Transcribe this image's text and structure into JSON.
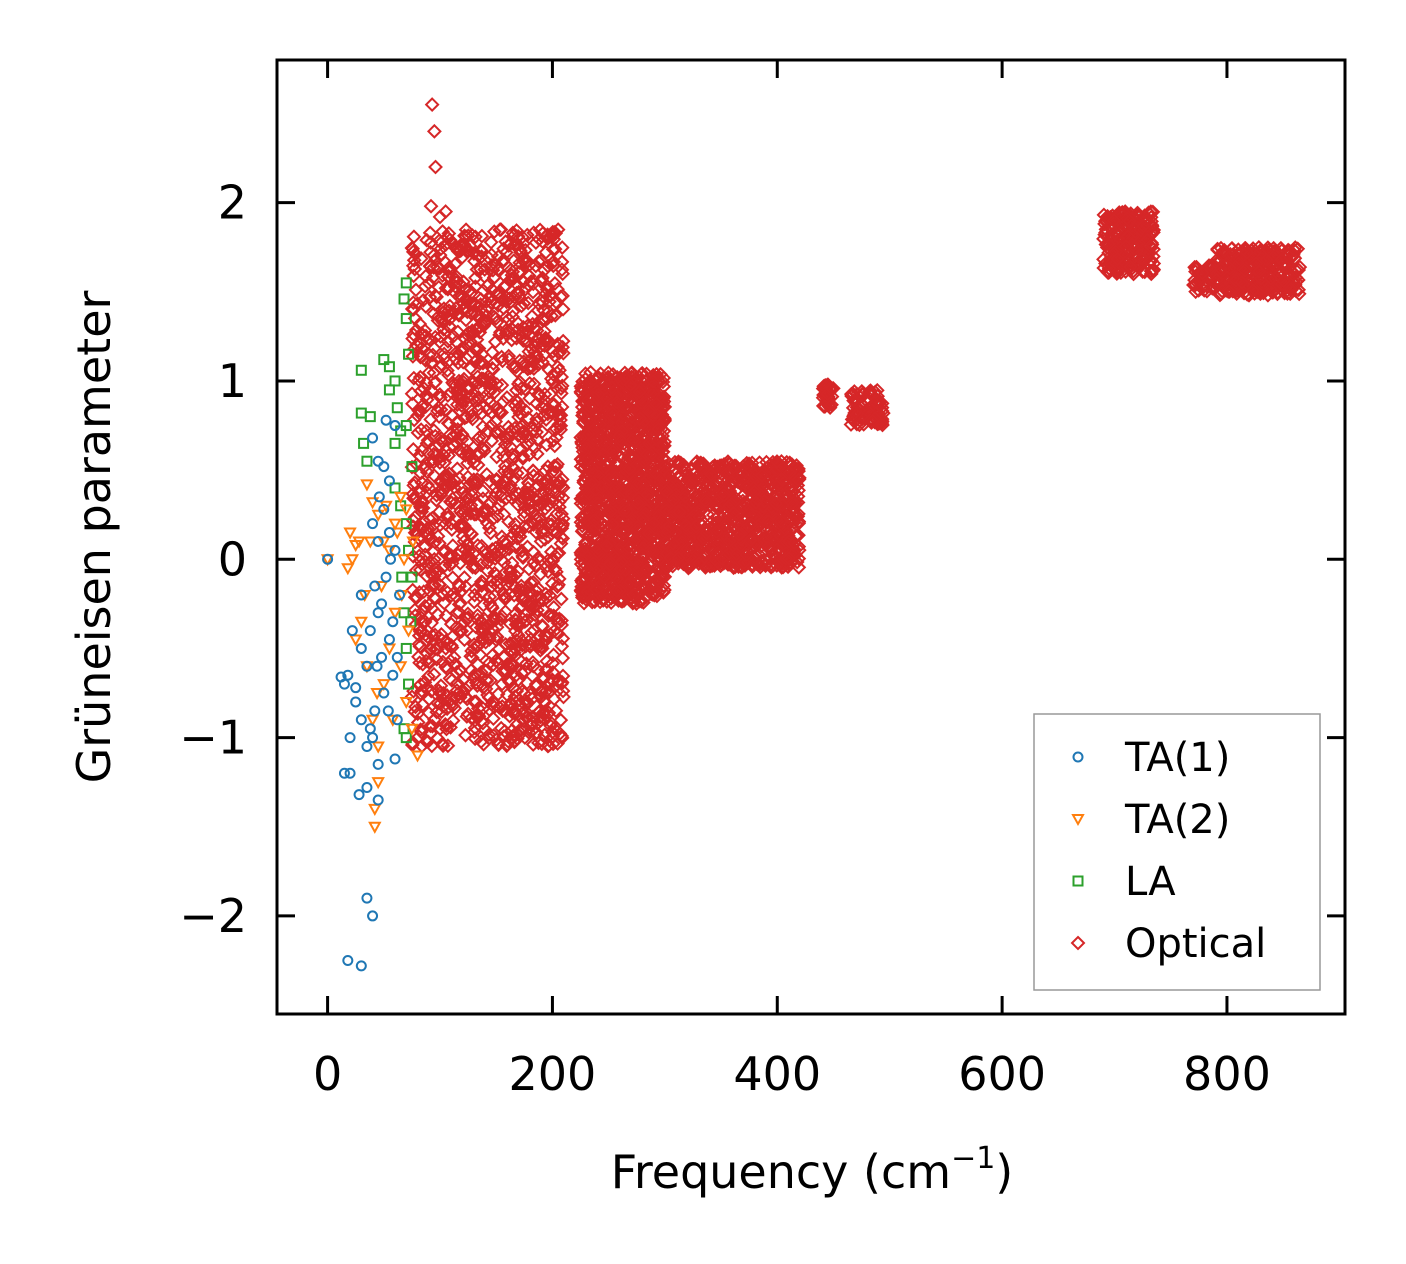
{
  "chart_data": {
    "type": "scatter",
    "title": "",
    "xlabel": "Frequency (cm",
    "xlabel_sup": "−1",
    "xlabel_suffix": ")",
    "ylabel": "Grüneisen parameter",
    "xlim": [
      -45,
      905
    ],
    "ylim": [
      -2.55,
      2.8
    ],
    "xticks": [
      0,
      200,
      400,
      600,
      800
    ],
    "xtick_labels": [
      "0",
      "200",
      "400",
      "600",
      "800"
    ],
    "yticks": [
      -2,
      -1,
      0,
      1,
      2
    ],
    "ytick_labels": [
      "−2",
      "−1",
      "0",
      "1",
      "2"
    ],
    "grid": false,
    "legend_position": "lower-right",
    "series": [
      {
        "name": "TA(1)",
        "marker": "circle",
        "color": "#1f77b4",
        "points": [
          [
            0,
            0
          ],
          [
            18,
            -2.25
          ],
          [
            30,
            -2.28
          ],
          [
            35,
            -1.9
          ],
          [
            40,
            -2.0
          ],
          [
            15,
            -1.2
          ],
          [
            20,
            -1.2
          ],
          [
            28,
            -1.32
          ],
          [
            35,
            -1.28
          ],
          [
            45,
            -1.35
          ],
          [
            18,
            -0.65
          ],
          [
            22,
            -0.4
          ],
          [
            25,
            -0.72
          ],
          [
            30,
            -0.5
          ],
          [
            30,
            -0.2
          ],
          [
            35,
            -0.6
          ],
          [
            38,
            -0.95
          ],
          [
            40,
            -1.0
          ],
          [
            42,
            -0.85
          ],
          [
            45,
            -0.3
          ],
          [
            48,
            -0.55
          ],
          [
            50,
            -0.75
          ],
          [
            52,
            -0.1
          ],
          [
            55,
            -0.45
          ],
          [
            58,
            -0.65
          ],
          [
            40,
            0.68
          ],
          [
            45,
            0.55
          ],
          [
            50,
            0.52
          ],
          [
            55,
            0.44
          ],
          [
            52,
            0.78
          ],
          [
            60,
            0.75
          ],
          [
            40,
            0.2
          ],
          [
            45,
            0.1
          ],
          [
            50,
            0.28
          ],
          [
            55,
            0.15
          ],
          [
            60,
            0.05
          ],
          [
            42,
            -0.15
          ],
          [
            48,
            -0.25
          ],
          [
            58,
            -0.35
          ],
          [
            62,
            -0.55
          ],
          [
            62,
            -0.9
          ],
          [
            60,
            -1.12
          ],
          [
            45,
            -1.15
          ],
          [
            35,
            -1.05
          ],
          [
            30,
            -0.9
          ],
          [
            25,
            -0.8
          ],
          [
            15,
            -0.7
          ],
          [
            12,
            -0.66
          ],
          [
            20,
            -1.0
          ],
          [
            38,
            -0.4
          ],
          [
            46,
            0.35
          ],
          [
            54,
            -0.85
          ],
          [
            64,
            -0.2
          ],
          [
            44,
            -0.6
          ],
          [
            56,
            0.0
          ]
        ]
      },
      {
        "name": "TA(2)",
        "marker": "triangle-down",
        "color": "#ff7f0e",
        "points": [
          [
            0,
            0
          ],
          [
            20,
            0.15
          ],
          [
            22,
            0.0
          ],
          [
            18,
            -0.05
          ],
          [
            25,
            0.08
          ],
          [
            35,
            0.42
          ],
          [
            40,
            0.32
          ],
          [
            45,
            0.25
          ],
          [
            50,
            0.1
          ],
          [
            55,
            0.05
          ],
          [
            60,
            0.2
          ],
          [
            65,
            0.35
          ],
          [
            70,
            0.28
          ],
          [
            30,
            -0.35
          ],
          [
            25,
            -0.45
          ],
          [
            35,
            -0.6
          ],
          [
            40,
            -0.9
          ],
          [
            45,
            -1.05
          ],
          [
            45,
            -1.25
          ],
          [
            42,
            -1.4
          ],
          [
            42,
            -1.5
          ],
          [
            50,
            -0.7
          ],
          [
            55,
            -0.5
          ],
          [
            60,
            -0.3
          ],
          [
            65,
            -0.6
          ],
          [
            70,
            -0.8
          ],
          [
            75,
            -0.95
          ],
          [
            80,
            -1.1
          ],
          [
            38,
            0.1
          ],
          [
            48,
            -0.15
          ],
          [
            58,
            -0.9
          ],
          [
            68,
            0.0
          ],
          [
            72,
            -0.4
          ],
          [
            52,
            0.3
          ],
          [
            62,
            0.15
          ],
          [
            28,
            0.1
          ],
          [
            33,
            -0.2
          ],
          [
            44,
            -0.75
          ],
          [
            66,
            -0.2
          ],
          [
            76,
            0.1
          ]
        ]
      },
      {
        "name": "LA",
        "marker": "square",
        "color": "#2ca02c",
        "points": [
          [
            30,
            1.06
          ],
          [
            50,
            1.12
          ],
          [
            55,
            1.08
          ],
          [
            60,
            1.0
          ],
          [
            70,
            1.55
          ],
          [
            68,
            1.46
          ],
          [
            70,
            1.35
          ],
          [
            72,
            1.15
          ],
          [
            30,
            0.82
          ],
          [
            38,
            0.8
          ],
          [
            32,
            0.65
          ],
          [
            35,
            0.55
          ],
          [
            60,
            0.65
          ],
          [
            65,
            0.72
          ],
          [
            70,
            0.75
          ],
          [
            75,
            0.52
          ],
          [
            65,
            0.3
          ],
          [
            70,
            0.2
          ],
          [
            72,
            0.05
          ],
          [
            75,
            -0.1
          ],
          [
            68,
            -0.3
          ],
          [
            70,
            -0.5
          ],
          [
            72,
            -0.7
          ],
          [
            68,
            -0.95
          ],
          [
            70,
            -1.0
          ],
          [
            66,
            -0.1
          ],
          [
            60,
            0.4
          ],
          [
            55,
            0.95
          ],
          [
            62,
            0.85
          ],
          [
            74,
            -0.35
          ]
        ]
      },
      {
        "name": "Optical",
        "marker": "diamond",
        "color": "#d62728",
        "clusters": [
          {
            "x": [
              75,
              210
            ],
            "y": [
              -1.05,
              1.85
            ],
            "density": "dense"
          },
          {
            "x": [
              225,
              300
            ],
            "y": [
              -0.25,
              1.05
            ],
            "density": "dense"
          },
          {
            "x": [
              300,
              420
            ],
            "y": [
              -0.05,
              0.55
            ],
            "density": "dense"
          },
          {
            "x": [
              440,
              450
            ],
            "y": [
              0.85,
              0.98
            ],
            "density": "dense"
          },
          {
            "x": [
              465,
              495
            ],
            "y": [
              0.75,
              0.95
            ],
            "density": "dense"
          },
          {
            "x": [
              690,
              735
            ],
            "y": [
              1.6,
              1.95
            ],
            "density": "dense"
          },
          {
            "x": [
              770,
              790
            ],
            "y": [
              1.5,
              1.65
            ],
            "density": "dense"
          },
          {
            "x": [
              790,
              865
            ],
            "y": [
              1.48,
              1.75
            ],
            "density": "dense"
          }
        ],
        "points": [
          [
            93,
            2.55
          ],
          [
            95,
            2.4
          ],
          [
            96,
            2.2
          ],
          [
            92,
            1.98
          ],
          [
            105,
            1.95
          ],
          [
            100,
            1.92
          ],
          [
            95,
            0.0
          ],
          [
            100,
            -0.95
          ],
          [
            95,
            -0.9
          ],
          [
            160,
            -1.04
          ],
          [
            130,
            -0.5
          ],
          [
            145,
            -0.68
          ],
          [
            165,
            -0.72
          ]
        ]
      }
    ]
  }
}
